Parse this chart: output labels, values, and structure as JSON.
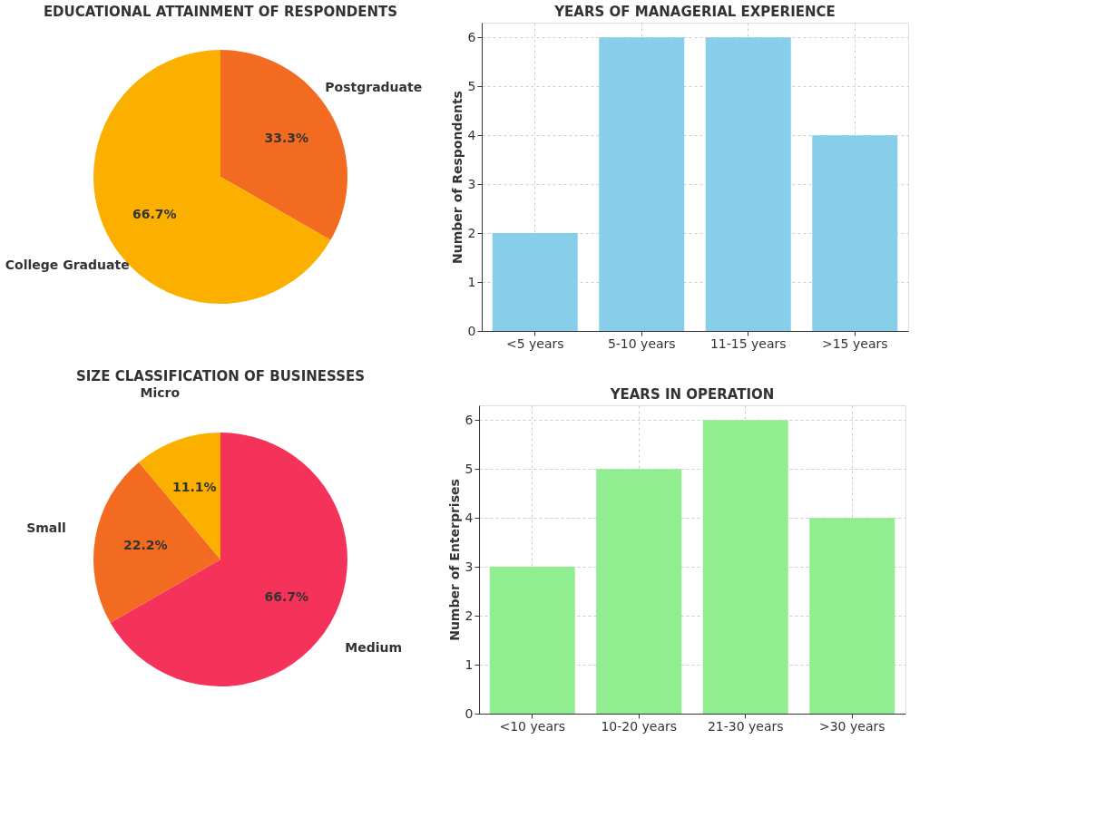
{
  "chart_data": [
    {
      "type": "pie",
      "title": "EDUCATIONAL ATTAINMENT OF RESPONDENTS",
      "categories": [
        "Postgraduate",
        "College Graduate"
      ],
      "values": [
        33.3,
        66.7
      ],
      "colors": [
        "#f26b21",
        "#fbb000"
      ],
      "value_labels": [
        "33.3%",
        "66.7%"
      ],
      "legend": false
    },
    {
      "type": "bar",
      "title": "YEARS OF MANAGERIAL EXPERIENCE",
      "ylabel": "Number of Respondents",
      "categories": [
        "<5 years",
        "5-10 years",
        "11-15 years",
        ">15 years"
      ],
      "values": [
        2,
        6,
        6,
        4
      ],
      "color": "#87ceeb",
      "ylim": [
        0,
        6.3
      ],
      "yticks": [
        0,
        1,
        2,
        3,
        4,
        5,
        6
      ],
      "grid": true,
      "legend": false
    },
    {
      "type": "pie",
      "title": "SIZE CLASSIFICATION OF BUSINESSES",
      "categories": [
        "Medium",
        "Small",
        "Micro"
      ],
      "values": [
        66.7,
        22.2,
        11.1
      ],
      "colors": [
        "#f5325a",
        "#f26b21",
        "#fbb000"
      ],
      "value_labels": [
        "66.7%",
        "22.2%",
        "11.1%"
      ],
      "legend": false
    },
    {
      "type": "bar",
      "title": "YEARS IN OPERATION",
      "ylabel": "Number of Enterprises",
      "categories": [
        "<10 years",
        "10-20 years",
        "21-30 years",
        ">30 years"
      ],
      "values": [
        3,
        5,
        6,
        4
      ],
      "color": "#90ee90",
      "ylim": [
        0,
        6.3
      ],
      "yticks": [
        0,
        1,
        2,
        3,
        4,
        5,
        6
      ],
      "grid": true,
      "legend": false
    }
  ]
}
